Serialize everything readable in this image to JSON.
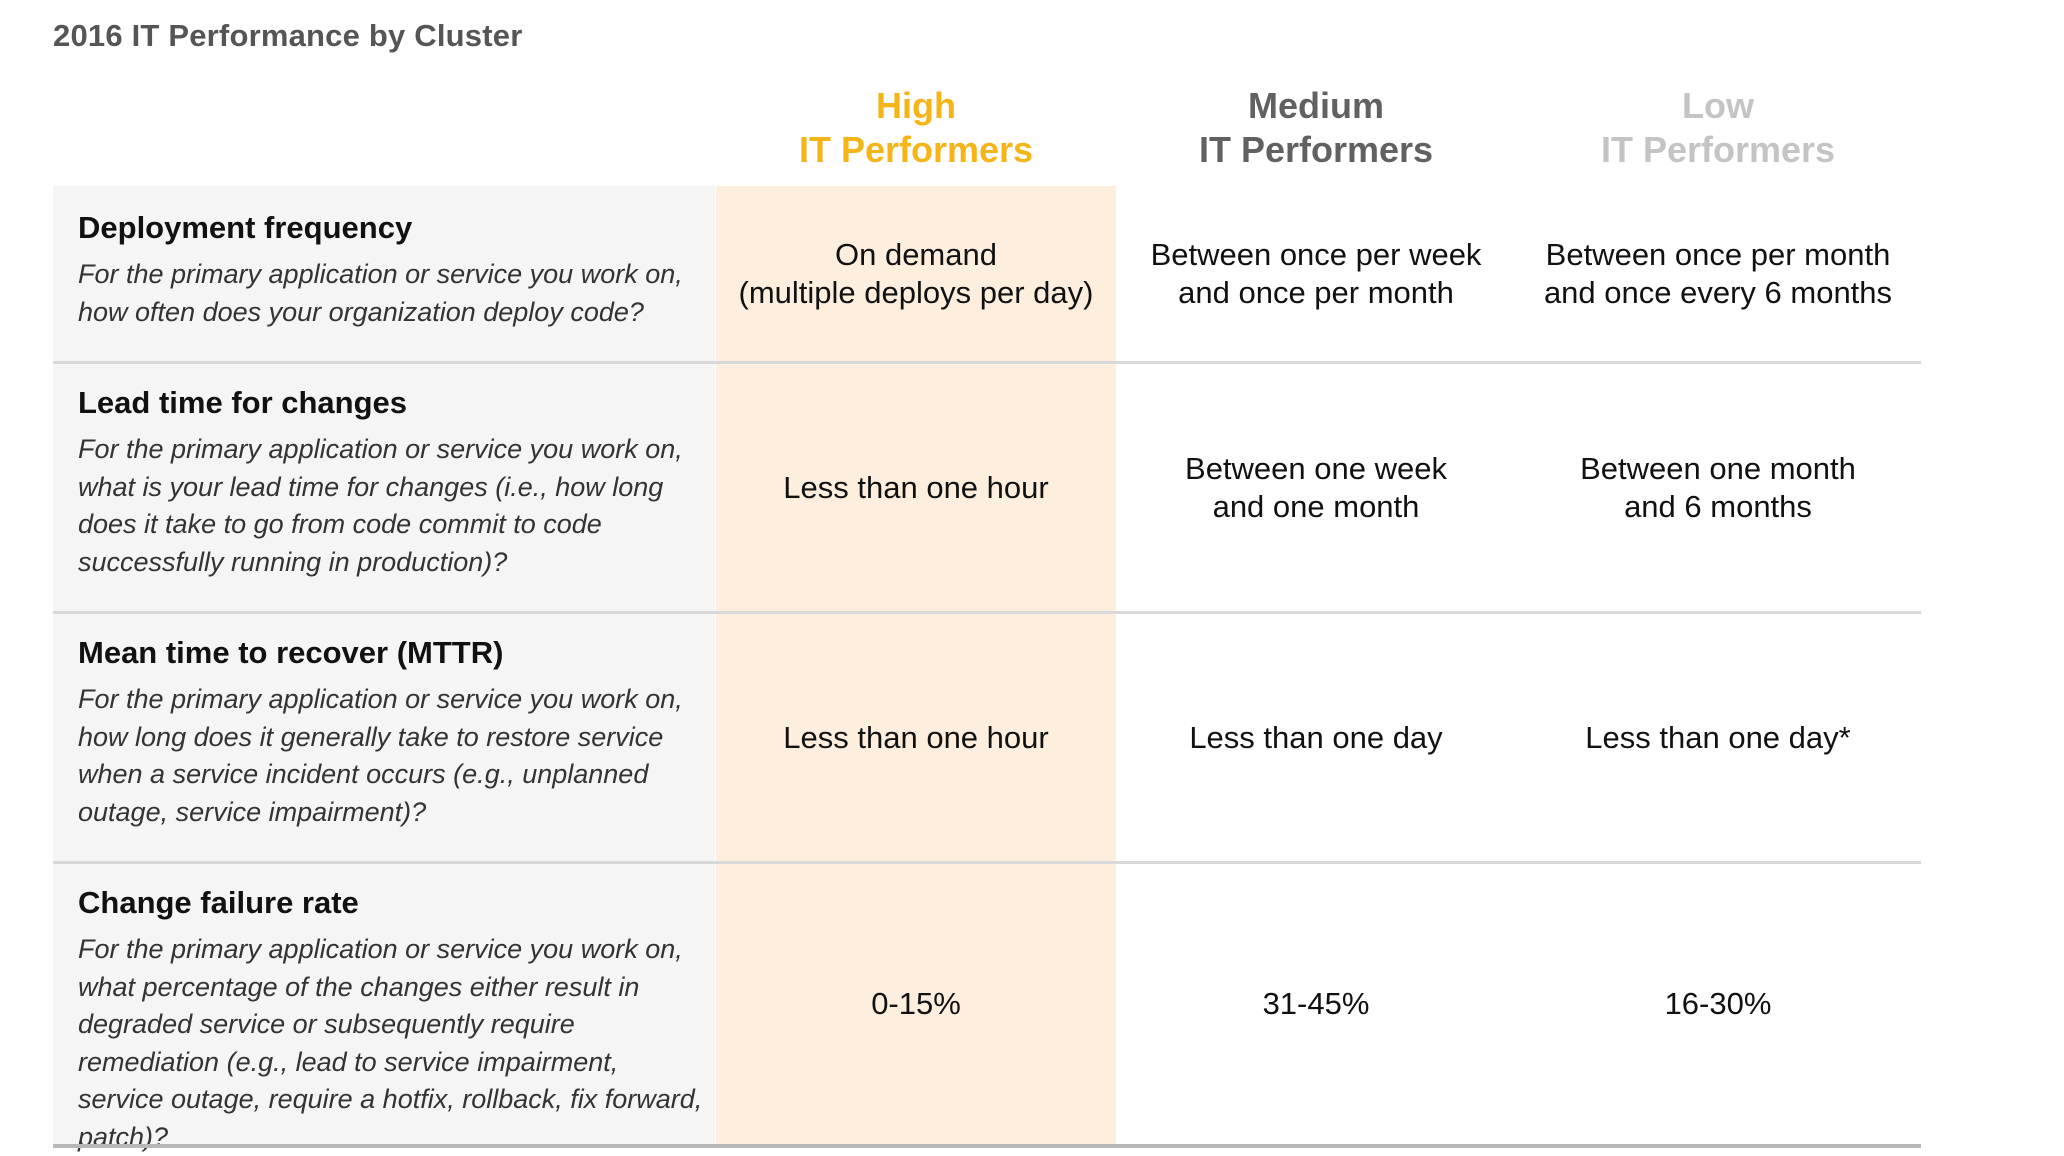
{
  "title": "2016 IT Performance by Cluster",
  "columns": [
    {
      "line1": "High",
      "line2": "IT Performers",
      "color": "#f5b519"
    },
    {
      "line1": "Medium",
      "line2": "IT Performers",
      "color": "#616161"
    },
    {
      "line1": "Low",
      "line2": "IT Performers",
      "color": "#c4c4c4"
    }
  ],
  "rows": [
    {
      "metric": "Deployment frequency",
      "question": "For the primary application or service you work on, how often does your organization deploy code?",
      "high": {
        "line1": "On demand",
        "line2": "(multiple deploys per day)"
      },
      "medium": {
        "line1": "Between once per week",
        "line2": "and once per month"
      },
      "low": {
        "line1": "Between once per month",
        "line2": "and once every 6 months"
      }
    },
    {
      "metric": "Lead time for changes",
      "question": "For the primary application or service you work on, what is your lead time for changes (i.e., how long does it take to go from code commit to code successfully running in production)?",
      "high": {
        "line1": "Less than one hour"
      },
      "medium": {
        "line1": "Between one week",
        "line2": "and one month"
      },
      "low": {
        "line1": "Between one month",
        "line2": "and 6 months"
      }
    },
    {
      "metric": "Mean time to recover (MTTR)",
      "question": "For the primary application or service you work on, how long does it generally take to restore service when a service incident occurs (e.g., unplanned outage, service impairment)?",
      "high": {
        "line1": "Less than one hour"
      },
      "medium": {
        "line1": "Less than one day"
      },
      "low": {
        "line1": "Less than one day*"
      }
    },
    {
      "metric": "Change failure rate",
      "question": "For the primary application or service you work on, what percentage of the changes either result in degraded service or subsequently require remediation (e.g., lead to service impairment, service outage, require a hotfix, rollback, fix forward, patch)?",
      "high": {
        "line1": "0-15%"
      },
      "medium": {
        "line1": "31-45%"
      },
      "low": {
        "line1": "16-30%"
      }
    }
  ]
}
